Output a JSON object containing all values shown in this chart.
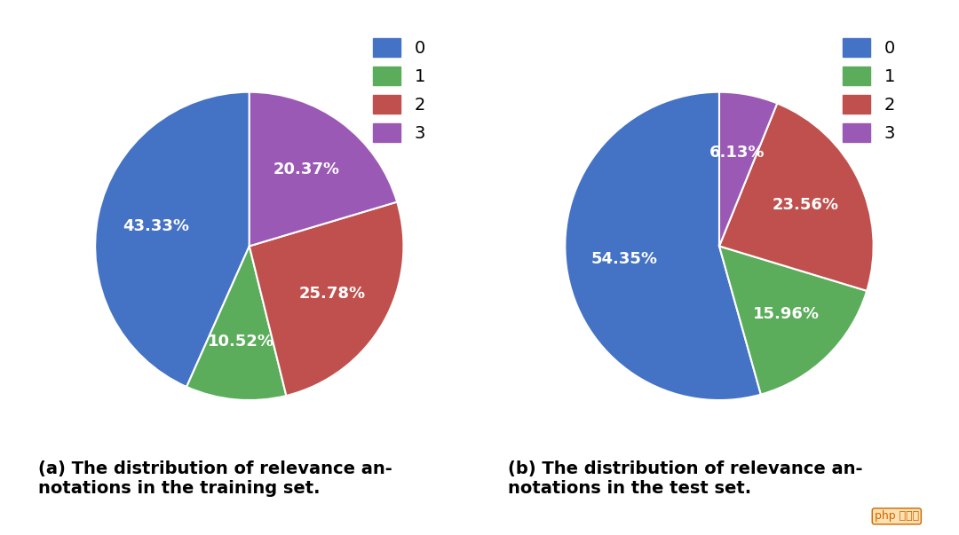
{
  "chart_a": {
    "values": [
      43.33,
      10.52,
      25.78,
      20.37
    ],
    "labels": [
      "43.33%",
      "10.52%",
      "25.78%",
      "20.37%"
    ],
    "caption": "(a) The distribution of relevance an-\nnotations in the training set."
  },
  "chart_b": {
    "values": [
      54.35,
      15.96,
      23.56,
      6.13
    ],
    "labels": [
      "54.35%",
      "15.96%",
      "23.56%",
      "6.13%"
    ],
    "caption": "(b) The distribution of relevance an-\nnotations in the test set."
  },
  "colors": [
    "#4472C4",
    "#5BAD5B",
    "#C0504D",
    "#9B59B6"
  ],
  "legend_labels": [
    "0",
    "1",
    "2",
    "3"
  ],
  "startangle": 90,
  "text_color": "white",
  "label_fontsize": 13,
  "caption_fontsize": 14,
  "legend_fontsize": 14,
  "background_color": "#FFFFFF"
}
